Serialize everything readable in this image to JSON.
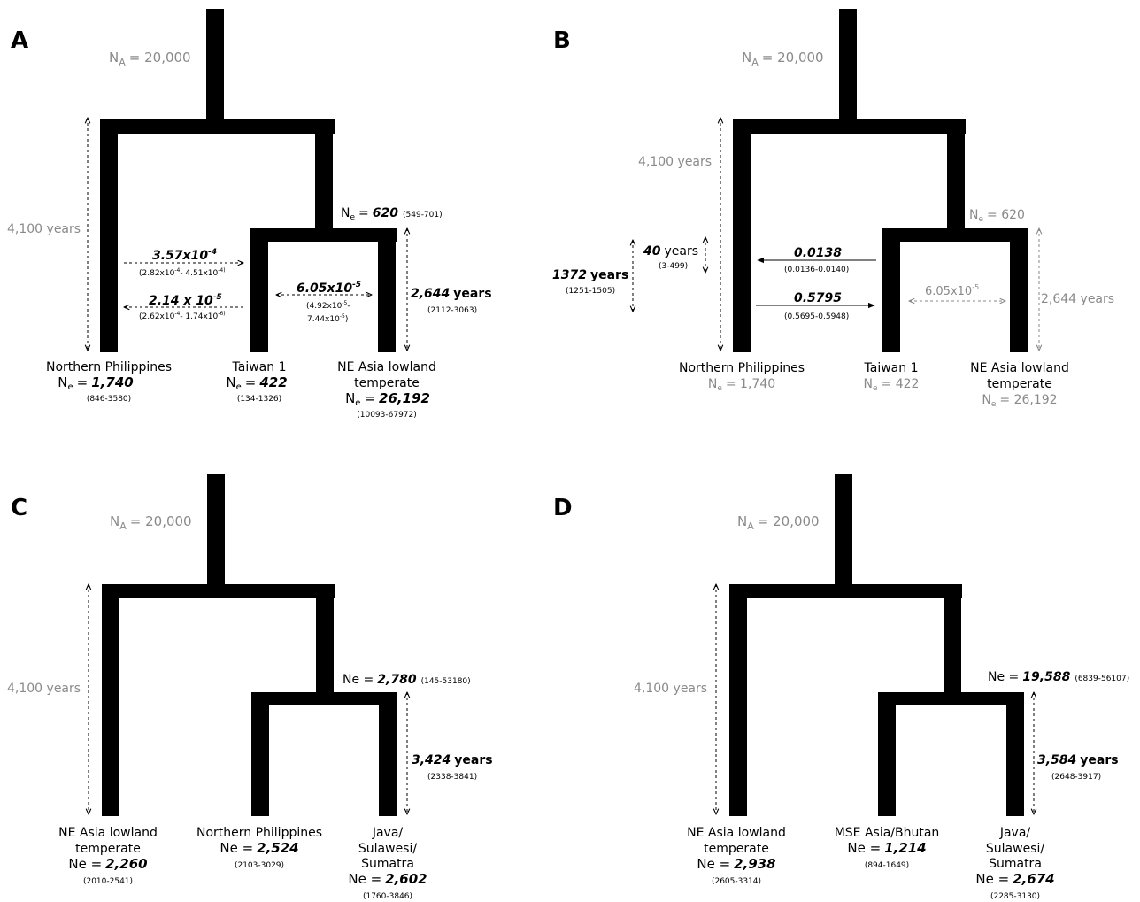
{
  "panels": [
    {
      "id": "A",
      "ancestral": "N",
      "ancestral_sub": "A",
      "ancestral_value": "= 20,000",
      "split_time": "4,100 years",
      "node_ne_label": "N",
      "node_ne_sub": "e",
      "node_ne_eq": "=",
      "node_ne_value": "620",
      "node_ne_ci": "(549-701)",
      "recent_time_value": "2,644",
      "recent_time_unit": "years",
      "recent_time_ci": "(2112-3063)",
      "migration": [
        {
          "value": "3.57x10",
          "exp": "-4",
          "ci": "(2.82x10",
          "ci_exp": "-4",
          "ci_rest": "- 4.51x10",
          "ci_exp2": "-4)"
        },
        {
          "value": "2.14 x 10",
          "exp": "-5",
          "ci": "(2.62x10",
          "ci_exp": "-4",
          "ci_rest": "- 1.74x10",
          "ci_exp2": "-6)"
        },
        {
          "value": "6.05x10",
          "exp": "-5",
          "ci_line1": "(4.92x10",
          "ci_exp": "-5",
          "ci_line1_end": "-",
          "ci_line2": "7.44x10",
          "ci_exp2": "-5",
          "ci_line2_end": ")"
        }
      ],
      "leaves": [
        {
          "name_lines": [
            "Northern Philippines"
          ],
          "ne_label": "N",
          "ne_sub": "e",
          "ne_eq": "=",
          "ne_value": "1,740",
          "ci": "(846-3580)"
        },
        {
          "name_lines": [
            "Taiwan 1"
          ],
          "ne_label": "N",
          "ne_sub": "e",
          "ne_eq": "=",
          "ne_value": "422",
          "ci": "(134-1326)"
        },
        {
          "name_lines": [
            "NE Asia lowland",
            "temperate"
          ],
          "ne_label": "N",
          "ne_sub": "e",
          "ne_eq": "=",
          "ne_value": "26,192",
          "ci": "(10093-67972)"
        }
      ]
    },
    {
      "id": "B",
      "ancestral": "N",
      "ancestral_sub": "A",
      "ancestral_value": "= 20,000",
      "split_time": "4,100 years",
      "node_ne_label": "N",
      "node_ne_sub": "e",
      "node_ne_value": "= 620",
      "recent_time": "2,644 years",
      "migration_gray": {
        "value": "6.05x10",
        "exp": "-5"
      },
      "admix": [
        {
          "value": "0.0138",
          "ci": "(0.0136-0.0140)"
        },
        {
          "value": "0.5795",
          "ci": "(0.5695-0.5948)"
        }
      ],
      "pulse_times": [
        {
          "value": "40",
          "unit": "years",
          "ci": "(3-499)"
        },
        {
          "value": "1372",
          "unit": "years",
          "ci": "(1251-1505)"
        }
      ],
      "leaves": [
        {
          "name_lines": [
            "Northern Philippines"
          ],
          "ne": "= 1,740"
        },
        {
          "name_lines": [
            "Taiwan 1"
          ],
          "ne": "= 422"
        },
        {
          "name_lines": [
            "NE Asia lowland",
            "temperate"
          ],
          "ne": "= 26,192"
        }
      ]
    },
    {
      "id": "C",
      "ancestral": "N",
      "ancestral_sub": "A",
      "ancestral_value": "= 20,000",
      "split_time": "4,100 years",
      "node_ne_label": "Ne =",
      "node_ne_value": "2,780",
      "node_ne_ci": "(145-53180)",
      "recent_time_value": "3,424",
      "recent_time_unit": "years",
      "recent_time_ci": "(2338-3841)",
      "leaves": [
        {
          "name_lines": [
            "NE Asia lowland",
            "temperate"
          ],
          "ne_label": "Ne =",
          "ne_value": "2,260",
          "ci": "(2010-2541)"
        },
        {
          "name_lines": [
            "Northern Philippines"
          ],
          "ne_label": "Ne =",
          "ne_value": "2,524",
          "ci": "(2103-3029)"
        },
        {
          "name_lines": [
            "Java/",
            "Sulawesi/",
            "Sumatra"
          ],
          "ne_label": "Ne =",
          "ne_value": "2,602",
          "ci": "(1760-3846)"
        }
      ]
    },
    {
      "id": "D",
      "ancestral": "N",
      "ancestral_sub": "A",
      "ancestral_value": "= 20,000",
      "split_time": "4,100 years",
      "node_ne_label": "Ne =",
      "node_ne_value": "19,588",
      "node_ne_ci": "(6839-56107)",
      "recent_time_value": "3,584",
      "recent_time_unit": "years",
      "recent_time_ci": "(2648-3917)",
      "leaves": [
        {
          "name_lines": [
            "NE Asia lowland",
            "temperate"
          ],
          "ne_label": "Ne =",
          "ne_value": "2,938",
          "ci": "(2605-3314)"
        },
        {
          "name_lines": [
            "MSE Asia/Bhutan"
          ],
          "ne_label": "Ne =",
          "ne_value": "1,214",
          "ci": "(894-1649)"
        },
        {
          "name_lines": [
            "Java/",
            "Sulawesi/",
            "Sumatra"
          ],
          "ne_label": "Ne =",
          "ne_value": "2,674",
          "ci": "(2285-3130)"
        }
      ]
    }
  ]
}
